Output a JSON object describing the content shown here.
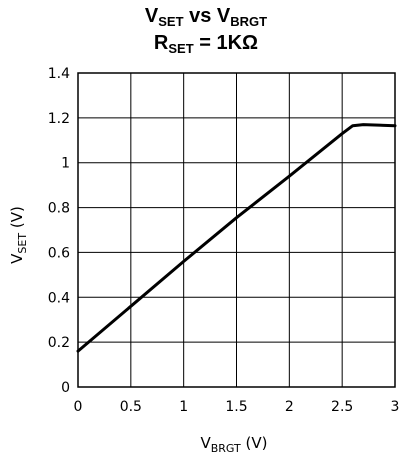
{
  "chart_data": {
    "type": "line",
    "title": {
      "line1": {
        "main1": "V",
        "sub1": "SET",
        "mid": " vs V",
        "sub2": "BRGT"
      },
      "line2": {
        "main1": "R",
        "sub1": "SET",
        "rest": " = 1KΩ"
      }
    },
    "xlabel": {
      "main": "V",
      "sub": "BRGT",
      "unit": "  (V)"
    },
    "ylabel": {
      "main": "V",
      "sub": "SET",
      "unit": "  (V)"
    },
    "xlim": [
      0,
      3
    ],
    "ylim": [
      0,
      1.4
    ],
    "xticks": [
      "0",
      "0.5",
      "1",
      "1.5",
      "2",
      "2.5",
      "3"
    ],
    "yticks": [
      "0",
      "0.2",
      "0.4",
      "0.6",
      "0.8",
      "1",
      "1.2",
      "1.4"
    ],
    "grid": true,
    "series": [
      {
        "x": [
          0,
          0.5,
          1.0,
          1.5,
          2.0,
          2.5,
          2.6,
          2.7,
          3.0
        ],
        "y": [
          0.16,
          0.36,
          0.56,
          0.755,
          0.94,
          1.13,
          1.165,
          1.17,
          1.165
        ]
      }
    ]
  }
}
